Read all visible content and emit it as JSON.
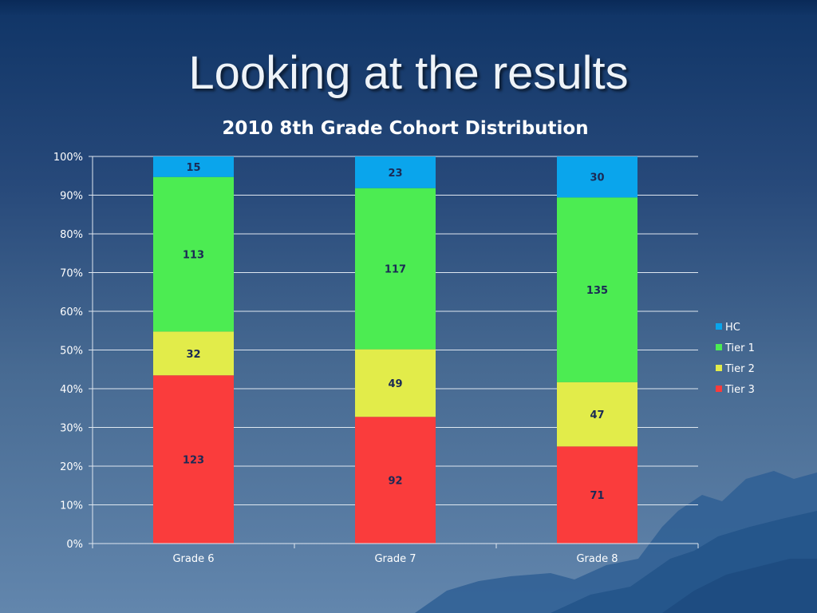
{
  "slide": {
    "title": "Looking at the results"
  },
  "colors": {
    "HC": "#0aa5ec",
    "Tier 1": "#4cec52",
    "Tier 2": "#e2ec4a",
    "Tier 3": "#fa3c3c",
    "label": "#1b2a55"
  },
  "chart_data": {
    "type": "bar",
    "stacked": "percent",
    "title": "2010 8th Grade Cohort Distribution",
    "categories": [
      "Grade 6",
      "Grade 7",
      "Grade 8"
    ],
    "series": [
      {
        "name": "Tier 3",
        "values": [
          123,
          92,
          71
        ]
      },
      {
        "name": "Tier 2",
        "values": [
          32,
          49,
          47
        ]
      },
      {
        "name": "Tier 1",
        "values": [
          113,
          117,
          135
        ]
      },
      {
        "name": "HC",
        "values": [
          15,
          23,
          30
        ]
      }
    ],
    "legend_order": [
      "HC",
      "Tier 1",
      "Tier 2",
      "Tier 3"
    ],
    "yticks": [
      "0%",
      "10%",
      "20%",
      "30%",
      "40%",
      "50%",
      "60%",
      "70%",
      "80%",
      "90%",
      "100%"
    ],
    "ylim": [
      0,
      100
    ],
    "xlabel": "",
    "ylabel": "",
    "grid": true,
    "legend_position": "right"
  }
}
